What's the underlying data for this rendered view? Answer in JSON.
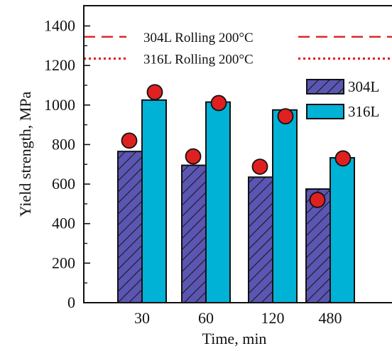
{
  "chart_data": {
    "type": "bar",
    "categories": [
      "30",
      "60",
      "120",
      "480"
    ],
    "xlabel": "Time, min",
    "ylabel": "Yield strength, MPa",
    "ylim": [
      0,
      1500
    ],
    "yticks": [
      0,
      200,
      400,
      600,
      800,
      1000,
      1200,
      1400
    ],
    "grid": false,
    "legend_position": "upper-right",
    "series": [
      {
        "name": "304L",
        "values": [
          765,
          695,
          635,
          575
        ],
        "color": "#5b55b3",
        "pattern": "diagonal-hatch"
      },
      {
        "name": "316L",
        "values": [
          1025,
          1015,
          975,
          733
        ],
        "color": "#00b2d6",
        "pattern": "solid"
      }
    ],
    "markers": {
      "color": "#e02020",
      "series": [
        {
          "values": [
            820,
            740,
            688,
            520
          ]
        },
        {
          "values": [
            1065,
            1010,
            943,
            730
          ]
        }
      ]
    },
    "reference_lines": [
      {
        "label": "304L Rolling 200°C",
        "value": 1345,
        "style": "dashed",
        "color": "#e02020"
      },
      {
        "label": "316L Rolling 200°C",
        "value": 1235,
        "style": "dotted",
        "color": "#e02020"
      }
    ]
  }
}
